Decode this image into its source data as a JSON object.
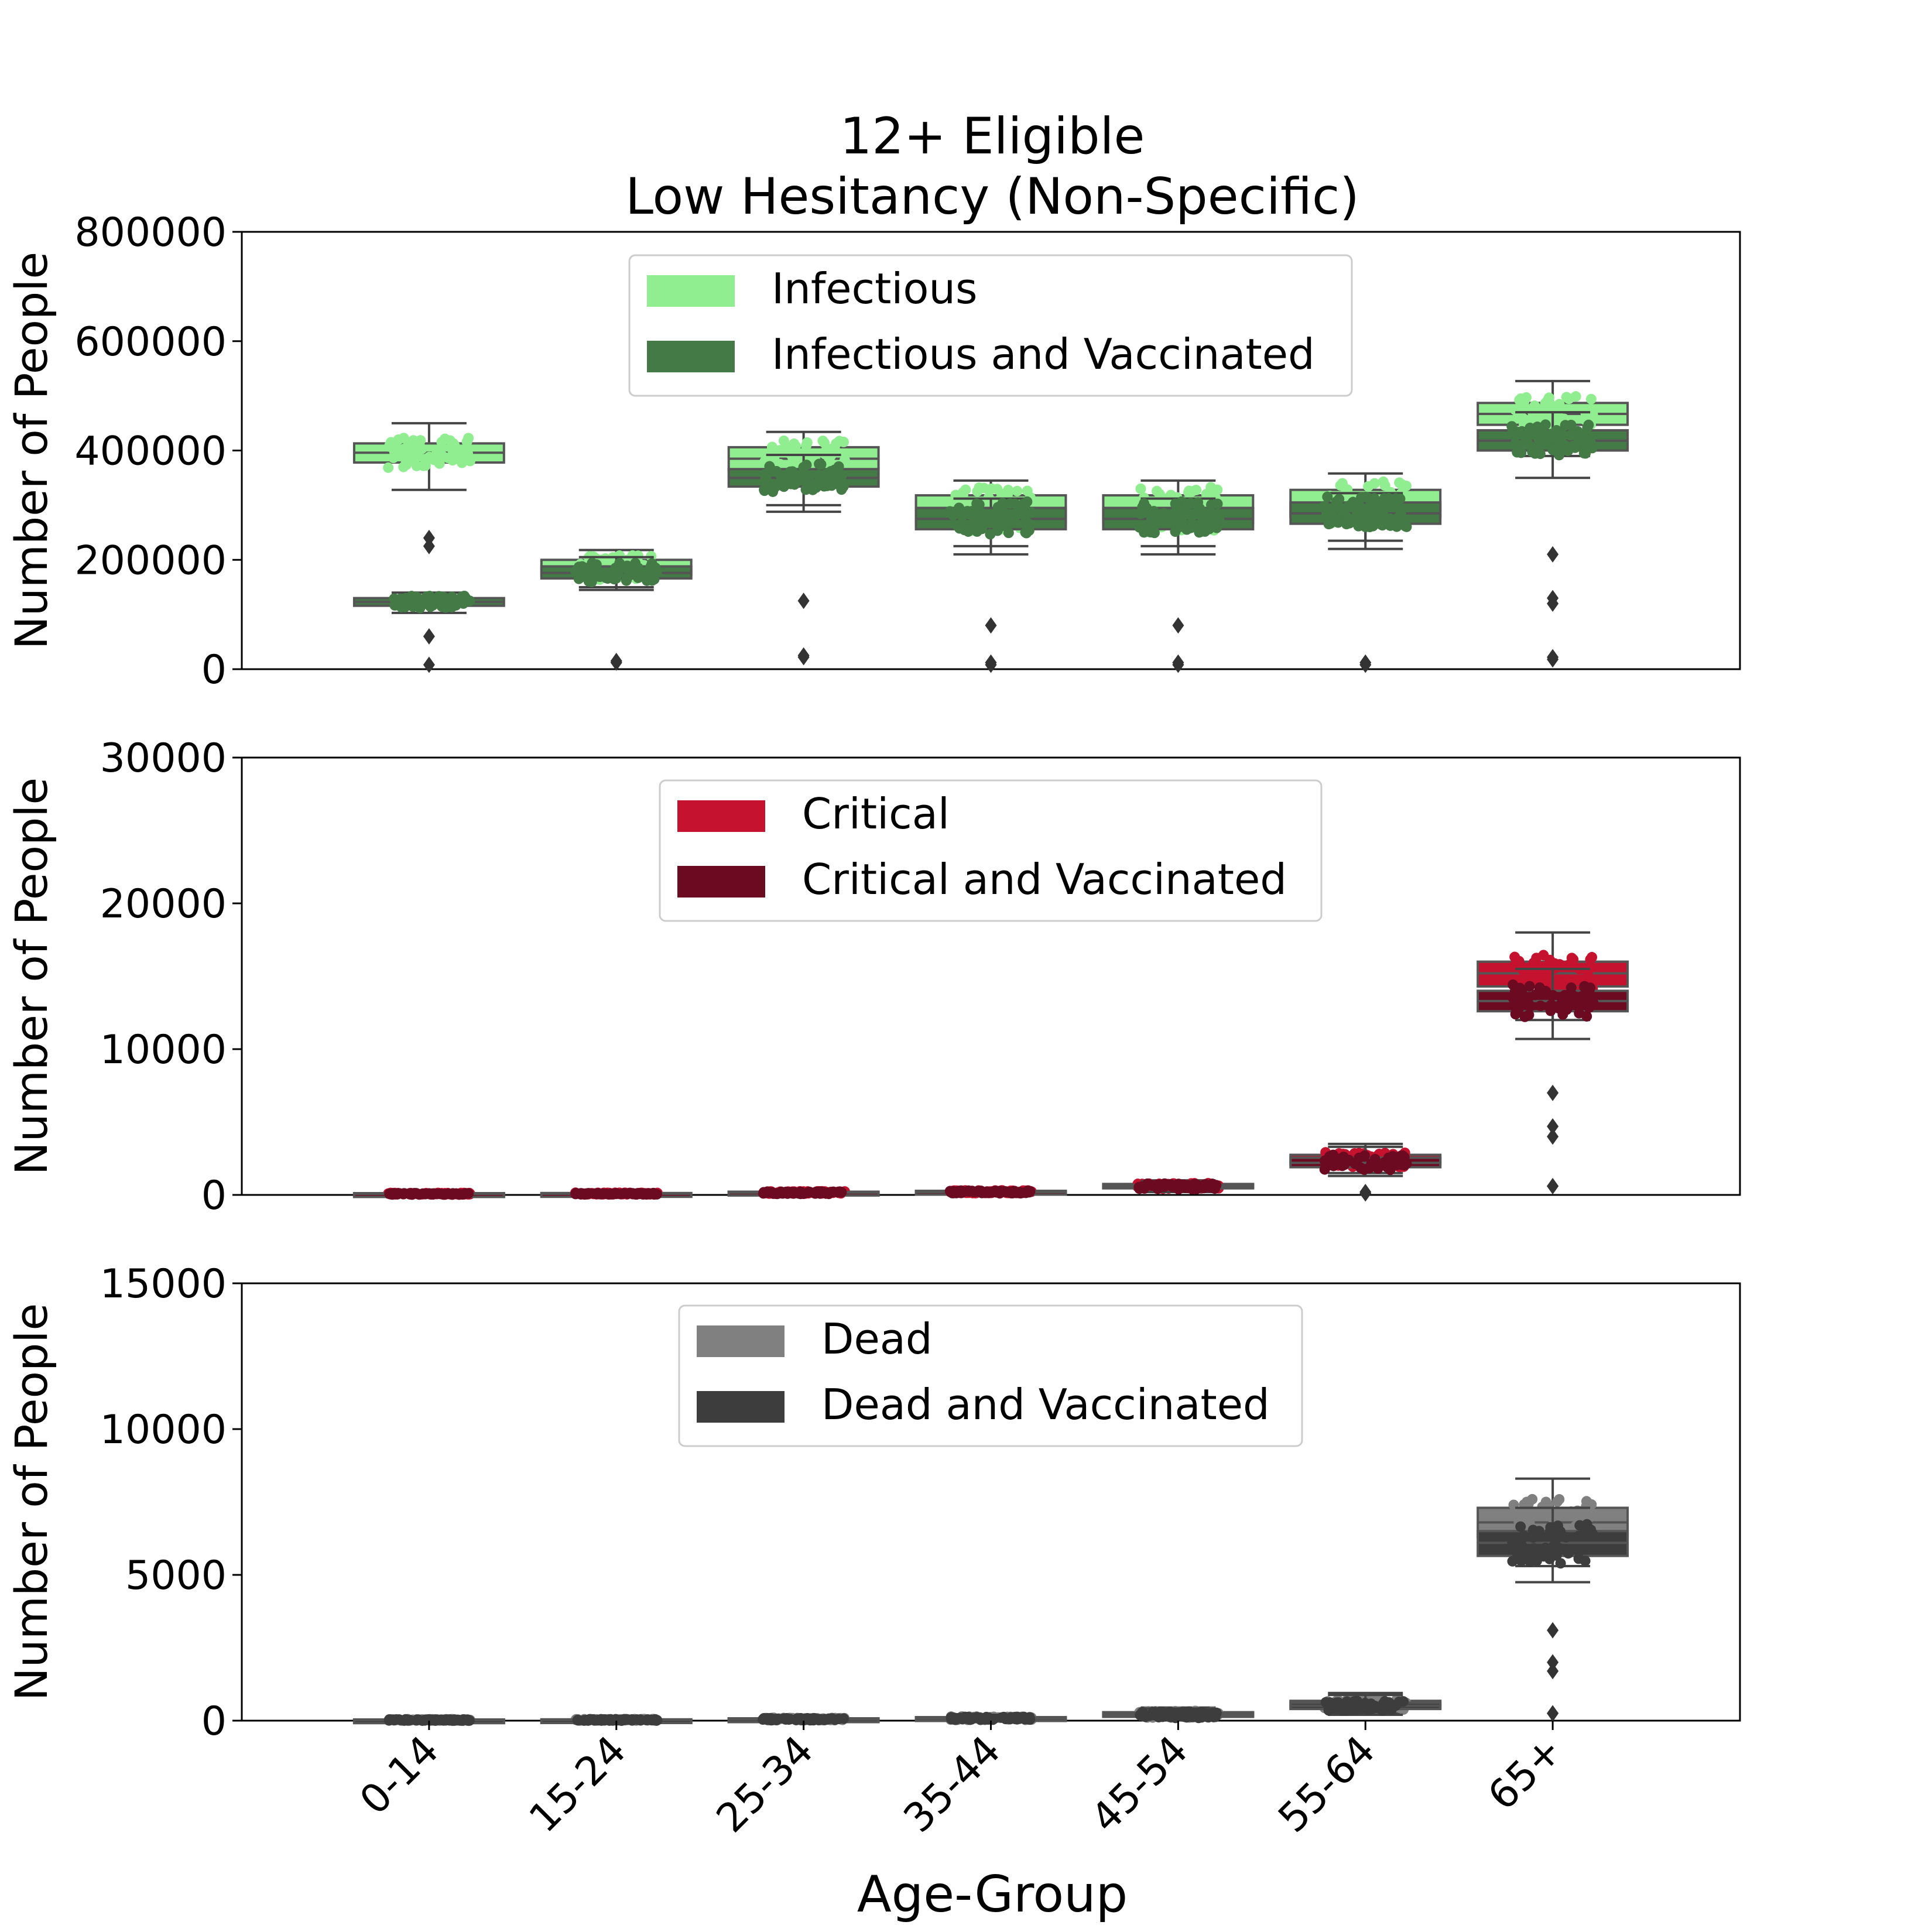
{
  "chart_data": {
    "type": "box",
    "title_lines": [
      "12+ Eligible",
      "Low Hesitancy (Non-Specific)"
    ],
    "xlabel": "Age-Group",
    "categories": [
      "0-14",
      "15-24",
      "25-34",
      "35-44",
      "45-54",
      "55-64",
      "65+"
    ],
    "panels": [
      {
        "ylabel": "Number of People",
        "ylim": [
          0,
          800000
        ],
        "yticks": [
          "0",
          "200000",
          "400000",
          "600000",
          "800000"
        ],
        "ytick_values": [
          0,
          200000,
          400000,
          600000,
          800000
        ],
        "legend_position": "upper center",
        "series": [
          {
            "name": "Infectious",
            "color": "#90ee90",
            "boxes": [
              {
                "q1": 378000,
                "median": 396000,
                "q3": 413000,
                "whislo": 328000,
                "whishi": 450000,
                "outliers": [
                  240000,
                  225000
                ]
              },
              {
                "q1": 172000,
                "median": 186000,
                "q3": 200000,
                "whislo": 150000,
                "whishi": 218000,
                "outliers": [
                  12000
                ]
              },
              {
                "q1": 364000,
                "median": 385000,
                "q3": 406000,
                "whislo": 300000,
                "whishi": 434000,
                "outliers": [
                  22000
                ]
              },
              {
                "q1": 268000,
                "median": 290000,
                "q3": 318000,
                "whislo": 225000,
                "whishi": 345000,
                "outliers": [
                  12000
                ]
              },
              {
                "q1": 268000,
                "median": 290000,
                "q3": 318000,
                "whislo": 225000,
                "whishi": 345000,
                "outliers": [
                  12000
                ]
              },
              {
                "q1": 278000,
                "median": 302000,
                "q3": 328000,
                "whislo": 235000,
                "whishi": 358000,
                "outliers": [
                  12000
                ]
              },
              {
                "q1": 447000,
                "median": 467000,
                "q3": 487000,
                "whislo": 390000,
                "whishi": 527000,
                "outliers": [
                  22000,
                  130000
                ]
              }
            ]
          },
          {
            "name": "Infectious and Vaccinated",
            "color": "#437a45",
            "boxes": [
              {
                "q1": 116000,
                "median": 123000,
                "q3": 130000,
                "whislo": 103000,
                "whishi": 140000,
                "outliers": [
                  8000,
                  60000
                ]
              },
              {
                "q1": 166000,
                "median": 176000,
                "q3": 188000,
                "whislo": 145000,
                "whishi": 205000,
                "outliers": [
                  15000
                ]
              },
              {
                "q1": 334000,
                "median": 350000,
                "q3": 366000,
                "whislo": 288000,
                "whishi": 392000,
                "outliers": [
                  25000,
                  125000
                ]
              },
              {
                "q1": 256000,
                "median": 275000,
                "q3": 295000,
                "whislo": 210000,
                "whishi": 312000,
                "outliers": [
                  8000,
                  80000
                ]
              },
              {
                "q1": 256000,
                "median": 275000,
                "q3": 295000,
                "whislo": 210000,
                "whishi": 312000,
                "outliers": [
                  8000,
                  80000
                ]
              },
              {
                "q1": 266000,
                "median": 285000,
                "q3": 305000,
                "whislo": 220000,
                "whishi": 322000,
                "outliers": [
                  8000
                ]
              },
              {
                "q1": 400000,
                "median": 418000,
                "q3": 437000,
                "whislo": 350000,
                "whishi": 470000,
                "outliers": [
                  18000,
                  120000,
                  210000
                ]
              }
            ]
          }
        ]
      },
      {
        "ylabel": "Number of People",
        "ylim": [
          0,
          30000
        ],
        "yticks": [
          "0",
          "10000",
          "20000",
          "30000"
        ],
        "ytick_values": [
          0,
          10000,
          20000,
          30000
        ],
        "legend_position": "upper center",
        "series": [
          {
            "name": "Critical",
            "color": "#c4122f",
            "boxes": [
              {
                "q1": 60,
                "median": 90,
                "q3": 120,
                "whislo": 20,
                "whishi": 200,
                "outliers": []
              },
              {
                "q1": 60,
                "median": 100,
                "q3": 130,
                "whislo": 20,
                "whishi": 220,
                "outliers": []
              },
              {
                "q1": 120,
                "median": 170,
                "q3": 220,
                "whislo": 50,
                "whishi": 330,
                "outliers": []
              },
              {
                "q1": 160,
                "median": 220,
                "q3": 280,
                "whislo": 60,
                "whishi": 400,
                "outliers": []
              },
              {
                "q1": 500,
                "median": 620,
                "q3": 750,
                "whislo": 250,
                "whishi": 1000,
                "outliers": []
              },
              {
                "q1": 2100,
                "median": 2400,
                "q3": 2750,
                "whislo": 1500,
                "whishi": 3500,
                "outliers": [
                  200
                ]
              },
              {
                "q1": 14300,
                "median": 15200,
                "q3": 16000,
                "whislo": 12000,
                "whishi": 18000,
                "outliers": [
                  600,
                  4700
                ]
              }
            ]
          },
          {
            "name": "Critical and Vaccinated",
            "color": "#6b0a20",
            "boxes": [
              {
                "q1": 40,
                "median": 70,
                "q3": 100,
                "whislo": 10,
                "whishi": 180,
                "outliers": []
              },
              {
                "q1": 50,
                "median": 80,
                "q3": 110,
                "whislo": 15,
                "whishi": 200,
                "outliers": []
              },
              {
                "q1": 100,
                "median": 150,
                "q3": 200,
                "whislo": 40,
                "whishi": 300,
                "outliers": []
              },
              {
                "q1": 140,
                "median": 200,
                "q3": 260,
                "whislo": 50,
                "whishi": 380,
                "outliers": []
              },
              {
                "q1": 450,
                "median": 560,
                "q3": 700,
                "whislo": 200,
                "whishi": 950,
                "outliers": []
              },
              {
                "q1": 1900,
                "median": 2200,
                "q3": 2550,
                "whislo": 1300,
                "whishi": 3300,
                "outliers": [
                  100
                ]
              },
              {
                "q1": 12600,
                "median": 13300,
                "q3": 14000,
                "whislo": 10700,
                "whishi": 15500,
                "outliers": [
                  600,
                  4000,
                  7000
                ]
              }
            ]
          }
        ]
      },
      {
        "ylabel": "Number of People",
        "ylim": [
          0,
          15000
        ],
        "yticks": [
          "0",
          "5000",
          "10000",
          "15000"
        ],
        "ytick_values": [
          0,
          5000,
          10000,
          15000
        ],
        "legend_position": "upper center",
        "series": [
          {
            "name": "Dead",
            "color": "#808080",
            "boxes": [
              {
                "q1": 10,
                "median": 25,
                "q3": 40,
                "whislo": 2,
                "whishi": 80,
                "outliers": []
              },
              {
                "q1": 12,
                "median": 28,
                "q3": 45,
                "whislo": 2,
                "whishi": 90,
                "outliers": []
              },
              {
                "q1": 30,
                "median": 55,
                "q3": 80,
                "whislo": 8,
                "whishi": 150,
                "outliers": []
              },
              {
                "q1": 50,
                "median": 85,
                "q3": 120,
                "whislo": 10,
                "whishi": 220,
                "outliers": []
              },
              {
                "q1": 150,
                "median": 220,
                "q3": 290,
                "whislo": 60,
                "whishi": 450,
                "outliers": []
              },
              {
                "q1": 450,
                "median": 560,
                "q3": 680,
                "whislo": 250,
                "whishi": 950,
                "outliers": []
              },
              {
                "q1": 6300,
                "median": 6800,
                "q3": 7300,
                "whislo": 5300,
                "whishi": 8300,
                "outliers": [
                  250,
                  2000
                ]
              }
            ]
          },
          {
            "name": "Dead and Vaccinated",
            "color": "#3d3d3d",
            "boxes": [
              {
                "q1": 8,
                "median": 20,
                "q3": 35,
                "whislo": 1,
                "whishi": 70,
                "outliers": []
              },
              {
                "q1": 10,
                "median": 24,
                "q3": 40,
                "whislo": 1,
                "whishi": 80,
                "outliers": []
              },
              {
                "q1": 25,
                "median": 48,
                "q3": 70,
                "whislo": 6,
                "whishi": 130,
                "outliers": []
              },
              {
                "q1": 45,
                "median": 75,
                "q3": 110,
                "whislo": 8,
                "whishi": 200,
                "outliers": []
              },
              {
                "q1": 130,
                "median": 200,
                "q3": 270,
                "whislo": 50,
                "whishi": 420,
                "outliers": []
              },
              {
                "q1": 400,
                "median": 510,
                "q3": 620,
                "whislo": 200,
                "whishi": 880,
                "outliers": []
              },
              {
                "q1": 5650,
                "median": 6100,
                "q3": 6500,
                "whislo": 4750,
                "whishi": 7300,
                "outliers": [
                  250,
                  1700,
                  3100
                ]
              }
            ]
          }
        ]
      }
    ]
  }
}
